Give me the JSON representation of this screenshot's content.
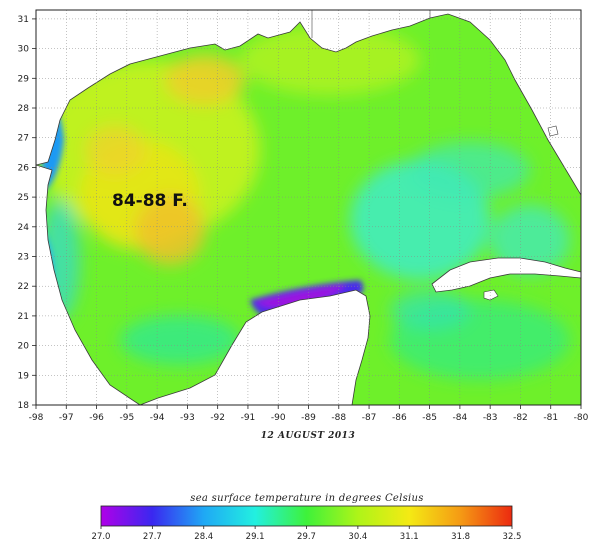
{
  "map": {
    "annotation": "84-88 F.",
    "date_label": "12 AUGUST 2013",
    "lat_ticks": [
      "31",
      "30",
      "29",
      "28",
      "27",
      "26",
      "25",
      "24",
      "23",
      "22",
      "21",
      "20",
      "19",
      "18"
    ],
    "lon_ticks": [
      "-98",
      "-97",
      "-96",
      "-95",
      "-94",
      "-93",
      "-92",
      "-91",
      "-90",
      "-89",
      "-88",
      "-87",
      "-86",
      "-85",
      "-84",
      "-83",
      "-82",
      "-81",
      "-80"
    ],
    "lat_range": [
      18,
      31.3
    ],
    "lon_range": [
      -98,
      -80
    ]
  },
  "colorbar": {
    "title": "sea surface temperature in degrees Celsius",
    "ticks": [
      "27.0",
      "27.7",
      "28.4",
      "29.1",
      "29.7",
      "30.4",
      "31.1",
      "31.8",
      "32.5"
    ],
    "colors": [
      "#b000e8",
      "#3a28f0",
      "#1fa8f5",
      "#22f0e0",
      "#3ef23a",
      "#aef418",
      "#f4ea14",
      "#f59a14",
      "#ec2a10"
    ]
  },
  "colors": {
    "land": "#ffffff",
    "coast": "#3a3a3a",
    "gulf_base": "#6ef02a"
  }
}
